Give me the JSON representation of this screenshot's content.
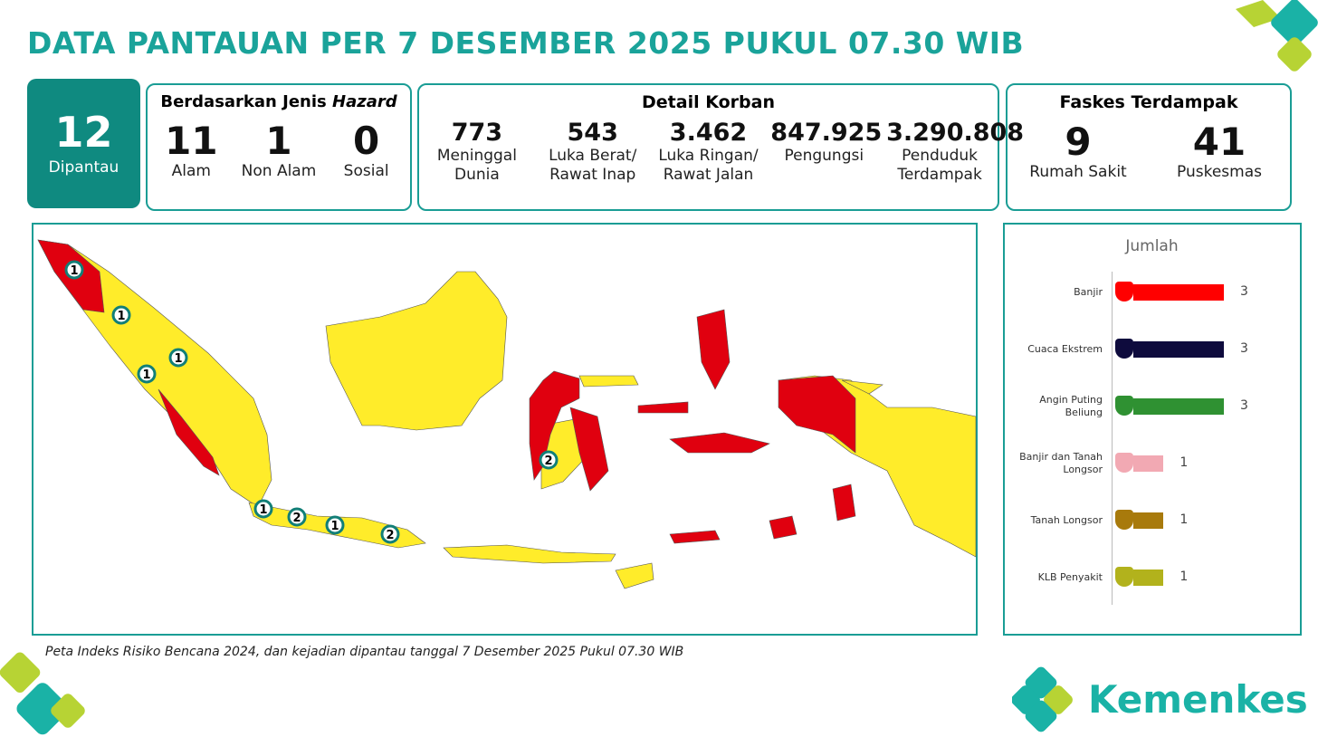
{
  "title": "DATA PANTAUAN PER 7 DESEMBER 2025 PUKUL 07.30 WIB",
  "monitored": {
    "value": 12,
    "label": "Dipantau"
  },
  "hazard": {
    "title_prefix": "Berdasarkan Jenis",
    "title_emphasis": "Hazard",
    "items": [
      {
        "value": 11,
        "label": "Alam"
      },
      {
        "value": 1,
        "label": "Non Alam"
      },
      {
        "value": 0,
        "label": "Sosial"
      }
    ]
  },
  "casualties": {
    "title": "Detail Korban",
    "items": [
      {
        "value": "773",
        "label": "Meninggal Dunia"
      },
      {
        "value": "543",
        "label": "Luka Berat/ Rawat Inap"
      },
      {
        "value": "3.462",
        "label": "Luka Ringan/ Rawat Jalan"
      },
      {
        "value": "847.925",
        "label": "Pengungsi"
      },
      {
        "value": "3.290.808",
        "label": "Penduduk Terdampak"
      }
    ]
  },
  "facilities": {
    "title": "Faskes Terdampak",
    "items": [
      {
        "value": 9,
        "label": "Rumah Sakit"
      },
      {
        "value": 41,
        "label": "Puskesmas"
      }
    ]
  },
  "map": {
    "markers": [
      1,
      1,
      1,
      1,
      1,
      2,
      1,
      2,
      2
    ]
  },
  "caption": "Peta Indeks Risiko Bencana 2024, dan kejadian dipantau tanggal 7 Desember 2025 Pukul 07.30 WIB",
  "logo": "Kemenkes",
  "chart_data": {
    "type": "bar",
    "orientation": "horizontal",
    "title": "Jumlah",
    "categories": [
      "Banjir",
      "Cuaca Ekstrem",
      "Angin Puting Beliung",
      "Banjir dan Tanah Longsor",
      "Tanah Longsor",
      "KLB Penyakit"
    ],
    "values": [
      3,
      3,
      3,
      1,
      1,
      1
    ],
    "colors": [
      "#ff0000",
      "#0e0b3d",
      "#2f9132",
      "#f2a9b3",
      "#a87a0c",
      "#b2b21c"
    ],
    "xlim": [
      0,
      3
    ]
  }
}
